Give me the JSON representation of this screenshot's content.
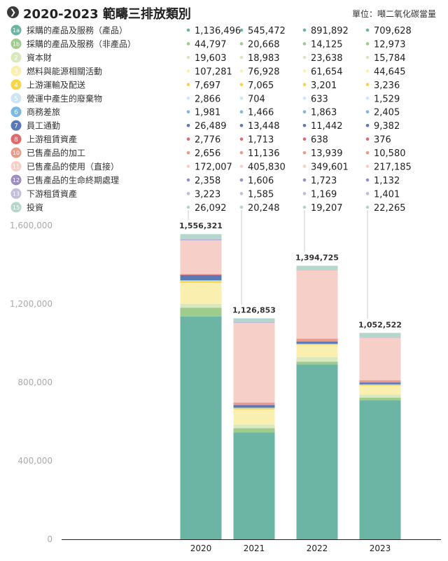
{
  "header": {
    "title": "2020-2023 範疇三排放類別",
    "unit": "單位：噸二氧化碳當量",
    "title_icon": "chevron-right-icon"
  },
  "chart_data": {
    "type": "bar",
    "stacked": true,
    "title": "2020-2023 範疇三排放類別",
    "unit": "噸二氧化碳當量",
    "categories": [
      "2020",
      "2021",
      "2022",
      "2023"
    ],
    "totals_display": [
      "1,556,321",
      "1,126,853",
      "1,394,725",
      "1,052,522"
    ],
    "yticks": [
      0,
      400000,
      800000,
      1200000,
      1600000
    ],
    "ytick_labels": [
      "0",
      "400,000",
      "800,000",
      "1,200,000",
      "1,600,000"
    ],
    "ylim": [
      0,
      1600000
    ],
    "series": [
      {
        "badge": "1a",
        "name": "採購的產品及服務（產品）",
        "color": "#6cb4a4",
        "values": [
          1136496,
          545472,
          891892,
          709628
        ],
        "labels": [
          "1,136,496",
          "545,472",
          "891,892",
          "709,628"
        ]
      },
      {
        "badge": "1b",
        "name": "採購的產品及服務（非產品）",
        "color": "#9fcb8c",
        "values": [
          44797,
          20668,
          14125,
          12973
        ],
        "labels": [
          "44,797",
          "20,668",
          "14,125",
          "12,973"
        ]
      },
      {
        "badge": "2",
        "name": "資本財",
        "color": "#d9e8bf",
        "values": [
          19603,
          18983,
          23638,
          15784
        ],
        "labels": [
          "19,603",
          "18,983",
          "23,638",
          "15,784"
        ]
      },
      {
        "badge": "3",
        "name": "燃料與能源相關活動",
        "color": "#fbefb0",
        "values": [
          107281,
          76928,
          61654,
          44645
        ],
        "labels": [
          "107,281",
          "76,928",
          "61,654",
          "44,645"
        ]
      },
      {
        "badge": "4",
        "name": "上游運輸及配送",
        "color": "#f6d54a",
        "values": [
          7697,
          7065,
          3201,
          3236
        ],
        "labels": [
          "7,697",
          "7,065",
          "3,201",
          "3,236"
        ]
      },
      {
        "badge": "5",
        "name": "營運中產生的廢棄物",
        "color": "#cde4f2",
        "values": [
          2866,
          704,
          633,
          1529
        ],
        "labels": [
          "2,866",
          "704",
          "633",
          "1,529"
        ]
      },
      {
        "badge": "6",
        "name": "商務差旅",
        "color": "#7ab9e0",
        "values": [
          1981,
          1466,
          1863,
          2405
        ],
        "labels": [
          "1,981",
          "1,466",
          "1,863",
          "2,405"
        ]
      },
      {
        "badge": "7",
        "name": "員工通勤",
        "color": "#5a79b8",
        "values": [
          26489,
          13448,
          11442,
          9382
        ],
        "labels": [
          "26,489",
          "13,448",
          "11,442",
          "9,382"
        ]
      },
      {
        "badge": "8",
        "name": "上游租賃資產",
        "color": "#e06a6a",
        "values": [
          2776,
          1713,
          638,
          376
        ],
        "labels": [
          "2,776",
          "1,713",
          "638",
          "376"
        ]
      },
      {
        "badge": "10",
        "name": "已售產品的加工",
        "color": "#e99a88",
        "values": [
          2656,
          11136,
          13939,
          10580
        ],
        "labels": [
          "2,656",
          "11,136",
          "13,939",
          "10,580"
        ]
      },
      {
        "badge": "11",
        "name": "已售產品的使用（直接）",
        "color": "#f6d0c8",
        "values": [
          172007,
          405830,
          349601,
          217185
        ],
        "labels": [
          "172,007",
          "405,830",
          "349,601",
          "217,185"
        ]
      },
      {
        "badge": "12",
        "name": "已售產品的生命終期處理",
        "color": "#a08cc4",
        "values": [
          2358,
          1606,
          1723,
          1132
        ],
        "labels": [
          "2,358",
          "1,606",
          "1,723",
          "1,132"
        ]
      },
      {
        "badge": "13",
        "name": "下游租賃資產",
        "color": "#c3bdd9",
        "values": [
          3223,
          1585,
          1169,
          1401
        ],
        "labels": [
          "3,223",
          "1,585",
          "1,169",
          "1,401"
        ]
      },
      {
        "badge": "15",
        "name": "投資",
        "color": "#b5d6cc",
        "values": [
          26092,
          20248,
          19207,
          22265
        ],
        "labels": [
          "26,092",
          "20,248",
          "19,207",
          "22,265"
        ]
      }
    ]
  }
}
